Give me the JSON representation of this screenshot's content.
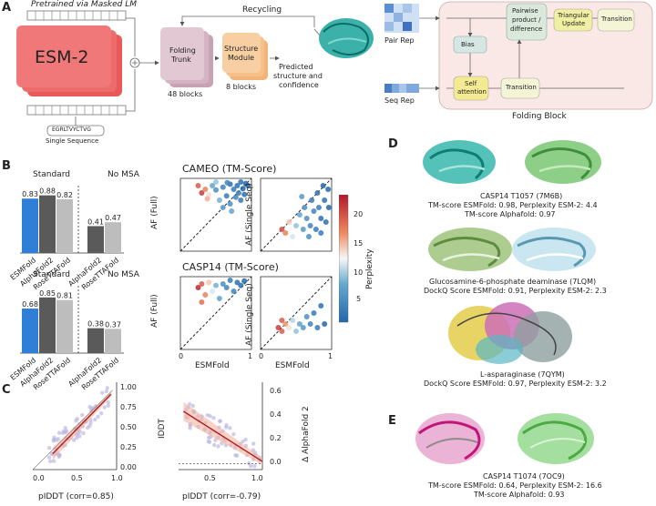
{
  "panels": {
    "A": "A",
    "B": "B",
    "C": "C",
    "D": "D",
    "E": "E"
  },
  "panel_a": {
    "pretrained": "Pretrained via Masked LM",
    "esm": "ESM-2",
    "sequence": "EGRLTVYCTVG",
    "single_sequence": "Single Sequence",
    "folding_trunk_1": "Folding",
    "folding_trunk_2": "Trunk",
    "trunk_blocks": "48 blocks",
    "structure_module_1": "Structure",
    "structure_module_2": "Module",
    "structure_blocks": "8 blocks",
    "recycling": "Recycling",
    "predicted_1": "Predicted",
    "predicted_2": "structure and",
    "predicted_3": "confidence",
    "pair_rep": "Pair Rep",
    "seq_rep": "Seq Rep",
    "bias": "Bias",
    "pairwise_1": "Pairwise",
    "pairwise_2": "product /",
    "pairwise_3": "difference",
    "triangular_1": "Triangular",
    "triangular_2": "Update",
    "transition": "Transition",
    "self_attention_1": "Self",
    "self_attention_2": "attention",
    "folding_block": "Folding Block"
  },
  "chart_data": [
    {
      "type": "bar",
      "title": "CAMEO (TM-Score)",
      "groups": [
        "Standard",
        "No MSA"
      ],
      "categories": [
        "ESMFold",
        "AlphaFold2",
        "RoseTTAFold",
        "AlphaFold2",
        "RoseTTAFold"
      ],
      "values": [
        0.83,
        0.88,
        0.82,
        0.41,
        0.47
      ],
      "value_labels": [
        "0.83",
        "0.88",
        "0.82",
        "0.41",
        "0.47"
      ],
      "colors": [
        "#2f7ed8",
        "#5a5a5a",
        "#bdbdbd",
        "#5a5a5a",
        "#bdbdbd"
      ]
    },
    {
      "type": "bar",
      "title": "CASP14 (TM-Score)",
      "groups": [
        "Standard",
        "No MSA"
      ],
      "categories": [
        "ESMFold",
        "AlphaFold2",
        "RoseTTAFold",
        "AlphaFold2",
        "RoseTTAFold"
      ],
      "values": [
        0.68,
        0.85,
        0.81,
        0.38,
        0.37
      ],
      "value_labels": [
        "0.68",
        "0.85",
        "0.81",
        "0.38",
        "0.37"
      ],
      "colors": [
        "#2f7ed8",
        "#5a5a5a",
        "#bdbdbd",
        "#5a5a5a",
        "#bdbdbd"
      ]
    },
    {
      "type": "scatter",
      "name": "cameo_full",
      "ylabel": "AF (Full)",
      "xlim": [
        0,
        1
      ],
      "ylim": [
        0,
        1
      ],
      "points": [
        [
          0.3,
          0.8,
          22
        ],
        [
          0.35,
          0.85,
          18
        ],
        [
          0.4,
          0.78,
          14
        ],
        [
          0.45,
          0.9,
          8
        ],
        [
          0.5,
          0.84,
          6
        ],
        [
          0.55,
          0.7,
          9
        ],
        [
          0.6,
          0.88,
          5
        ],
        [
          0.65,
          0.76,
          4
        ],
        [
          0.7,
          0.92,
          3
        ],
        [
          0.75,
          0.85,
          4
        ],
        [
          0.78,
          0.74,
          5
        ],
        [
          0.8,
          0.9,
          3
        ],
        [
          0.82,
          0.8,
          4
        ],
        [
          0.85,
          0.95,
          3
        ],
        [
          0.88,
          0.86,
          2
        ],
        [
          0.9,
          0.78,
          3
        ],
        [
          0.92,
          0.93,
          2
        ],
        [
          0.95,
          0.9,
          2
        ],
        [
          0.6,
          0.6,
          7
        ],
        [
          0.7,
          0.65,
          6
        ],
        [
          0.5,
          0.95,
          10
        ],
        [
          0.25,
          0.9,
          20
        ],
        [
          0.38,
          0.72,
          16
        ],
        [
          0.72,
          0.55,
          8
        ],
        [
          0.85,
          0.7,
          4
        ],
        [
          0.66,
          0.94,
          5
        ]
      ]
    },
    {
      "type": "scatter",
      "name": "cameo_single",
      "ylabel": "AF (Single Seq)",
      "xlim": [
        0,
        1
      ],
      "ylim": [
        0,
        1
      ],
      "points": [
        [
          0.3,
          0.3,
          21
        ],
        [
          0.35,
          0.25,
          18
        ],
        [
          0.4,
          0.4,
          15
        ],
        [
          0.5,
          0.35,
          10
        ],
        [
          0.55,
          0.5,
          8
        ],
        [
          0.6,
          0.3,
          7
        ],
        [
          0.62,
          0.6,
          6
        ],
        [
          0.65,
          0.45,
          6
        ],
        [
          0.7,
          0.35,
          5
        ],
        [
          0.72,
          0.7,
          4
        ],
        [
          0.75,
          0.55,
          5
        ],
        [
          0.78,
          0.3,
          4
        ],
        [
          0.8,
          0.8,
          3
        ],
        [
          0.82,
          0.6,
          4
        ],
        [
          0.85,
          0.45,
          3
        ],
        [
          0.88,
          0.9,
          2
        ],
        [
          0.9,
          0.7,
          3
        ],
        [
          0.92,
          0.4,
          3
        ],
        [
          0.95,
          0.85,
          2
        ],
        [
          0.45,
          0.2,
          12
        ],
        [
          0.68,
          0.2,
          6
        ],
        [
          0.58,
          0.75,
          7
        ],
        [
          0.85,
          0.25,
          4
        ],
        [
          0.96,
          0.6,
          2
        ]
      ]
    },
    {
      "type": "scatter",
      "name": "casp14_full",
      "ylabel": "AF (Full)",
      "xlabel": "ESMFold",
      "xlim": [
        0,
        1
      ],
      "ylim": [
        0,
        1
      ],
      "points": [
        [
          0.25,
          0.85,
          23
        ],
        [
          0.3,
          0.9,
          20
        ],
        [
          0.35,
          0.75,
          18
        ],
        [
          0.4,
          0.92,
          15
        ],
        [
          0.45,
          0.8,
          12
        ],
        [
          0.5,
          0.88,
          9
        ],
        [
          0.55,
          0.7,
          8
        ],
        [
          0.6,
          0.9,
          6
        ],
        [
          0.65,
          0.85,
          5
        ],
        [
          0.7,
          0.95,
          4
        ],
        [
          0.75,
          0.8,
          5
        ],
        [
          0.8,
          0.92,
          3
        ],
        [
          0.85,
          0.88,
          3
        ],
        [
          0.9,
          0.94,
          2
        ],
        [
          0.3,
          0.65,
          19
        ]
      ]
    },
    {
      "type": "scatter",
      "name": "casp14_single",
      "ylabel": "AF (Single Seq)",
      "xlabel": "ESMFold",
      "xlim": [
        0,
        1
      ],
      "ylim": [
        0,
        1
      ],
      "points": [
        [
          0.25,
          0.3,
          22
        ],
        [
          0.3,
          0.25,
          20
        ],
        [
          0.35,
          0.35,
          17
        ],
        [
          0.4,
          0.3,
          14
        ],
        [
          0.45,
          0.4,
          11
        ],
        [
          0.5,
          0.25,
          10
        ],
        [
          0.55,
          0.35,
          8
        ],
        [
          0.6,
          0.3,
          7
        ],
        [
          0.65,
          0.45,
          6
        ],
        [
          0.7,
          0.35,
          5
        ],
        [
          0.75,
          0.5,
          4
        ],
        [
          0.8,
          0.3,
          4
        ],
        [
          0.85,
          0.6,
          3
        ],
        [
          0.9,
          0.35,
          2
        ],
        [
          0.3,
          0.4,
          20
        ]
      ]
    },
    {
      "type": "colorbar",
      "label": "Perplexity",
      "ticks": [
        "20",
        "15",
        "10",
        "5"
      ],
      "range": [
        2,
        24
      ]
    },
    {
      "type": "scatter",
      "name": "plddt_vs_lddt",
      "xlabel": "pIDDT (corr=0.85)",
      "ylabel": "IDDT",
      "xticks": [
        "0.0",
        "0.5",
        "1.0"
      ],
      "yticks": [
        "0.00",
        "0.25",
        "0.50",
        "0.75",
        "1.00"
      ],
      "fit": [
        [
          0.25,
          0.2
        ],
        [
          0.98,
          0.95
        ]
      ]
    },
    {
      "type": "scatter",
      "name": "plddt_vs_delta",
      "xlabel": "pIDDT (corr=-0.79)",
      "ylabel": "Δ AlphaFold 2",
      "xticks": [
        "0.5",
        "1.0"
      ],
      "yticks": [
        "0.0",
        "0.2",
        "0.4",
        "0.6"
      ],
      "fit": [
        [
          0.2,
          0.45
        ],
        [
          1.0,
          0.02
        ]
      ]
    }
  ],
  "panel_b": {
    "standard": "Standard",
    "no_msa": "No MSA",
    "title1": "CAMEO (TM-Score)",
    "title2": "CASP14 (TM-Score)",
    "af_full": "AF (Full)",
    "af_single": "AF (Single Seq)",
    "esmfold": "ESMFold",
    "perplexity": "Perplexity"
  },
  "panel_d": {
    "cap1_1": "CASP14 T1057 (7M6B)",
    "cap1_2": "TM-score ESMFold: 0.98, Perplexity ESM-2: 4.4",
    "cap1_3": "TM-score Alphafold: 0.97",
    "cap2_1": "Glucosamine-6-phosphate deaminase (7LQM)",
    "cap2_2": "DockQ Score ESMFold: 0.91, Perplexity ESM-2: 2.3",
    "cap3_1": "L-asparaginase (7QYM)",
    "cap3_2": "DockQ Score ESMFold: 0.97, Perplexity ESM-2: 3.2"
  },
  "panel_e": {
    "cap_1": "CASP14 T1074 (7OC9)",
    "cap_2": "TM-score ESMFold: 0.64, Perplexity ESM-2: 16.6",
    "cap_3": "TM-score Alphafold: 0.93"
  }
}
